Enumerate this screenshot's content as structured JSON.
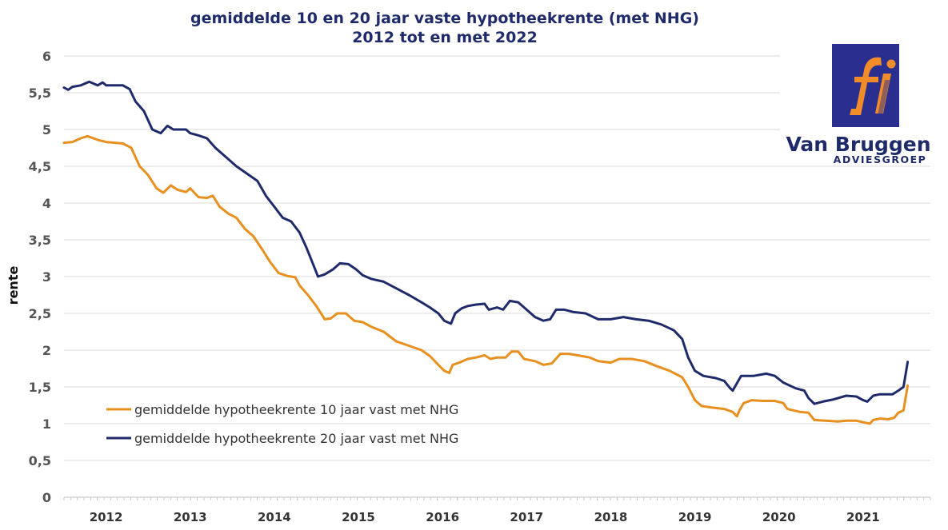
{
  "chart_data": {
    "type": "line",
    "title": "gemiddelde 10 en 20 jaar vaste hypotheekrente (met NHG)",
    "subtitle": "2012 tot en met 2022",
    "xlabel": "",
    "ylabel": "rente",
    "ylim": [
      0,
      6
    ],
    "xlim": [
      2011.5,
      2021.8
    ],
    "y_ticks": [
      "0",
      "0,5",
      "1",
      "1,5",
      "2",
      "2,5",
      "3",
      "3,5",
      "4",
      "4,5",
      "5",
      "5,5",
      "6"
    ],
    "x_ticks": [
      "2012",
      "2013",
      "2014",
      "2015",
      "2016",
      "2017",
      "2018",
      "2019",
      "2020",
      "2021"
    ],
    "grid": true,
    "legend_position": "bottom-left",
    "series": [
      {
        "name": "gemiddelde hypotheekrente 10 jaar vast met NHG",
        "color": "#e8901f",
        "points": [
          [
            2011.5,
            4.82
          ],
          [
            2011.6,
            4.83
          ],
          [
            2011.7,
            4.88
          ],
          [
            2011.78,
            4.91
          ],
          [
            2011.9,
            4.86
          ],
          [
            2012.0,
            4.83
          ],
          [
            2012.2,
            4.81
          ],
          [
            2012.3,
            4.75
          ],
          [
            2012.4,
            4.5
          ],
          [
            2012.5,
            4.38
          ],
          [
            2012.6,
            4.2
          ],
          [
            2012.68,
            4.14
          ],
          [
            2012.77,
            4.24
          ],
          [
            2012.85,
            4.18
          ],
          [
            2012.95,
            4.15
          ],
          [
            2013.0,
            4.2
          ],
          [
            2013.1,
            4.08
          ],
          [
            2013.2,
            4.07
          ],
          [
            2013.27,
            4.1
          ],
          [
            2013.35,
            3.95
          ],
          [
            2013.45,
            3.86
          ],
          [
            2013.55,
            3.8
          ],
          [
            2013.65,
            3.65
          ],
          [
            2013.75,
            3.55
          ],
          [
            2013.85,
            3.38
          ],
          [
            2013.95,
            3.2
          ],
          [
            2014.05,
            3.05
          ],
          [
            2014.15,
            3.01
          ],
          [
            2014.25,
            2.99
          ],
          [
            2014.3,
            2.88
          ],
          [
            2014.4,
            2.75
          ],
          [
            2014.5,
            2.6
          ],
          [
            2014.6,
            2.42
          ],
          [
            2014.67,
            2.43
          ],
          [
            2014.75,
            2.5
          ],
          [
            2014.85,
            2.5
          ],
          [
            2014.95,
            2.4
          ],
          [
            2015.05,
            2.38
          ],
          [
            2015.15,
            2.32
          ],
          [
            2015.3,
            2.25
          ],
          [
            2015.45,
            2.12
          ],
          [
            2015.6,
            2.06
          ],
          [
            2015.75,
            2.0
          ],
          [
            2015.85,
            1.92
          ],
          [
            2015.95,
            1.8
          ],
          [
            2016.02,
            1.72
          ],
          [
            2016.08,
            1.69
          ],
          [
            2016.12,
            1.8
          ],
          [
            2016.2,
            1.83
          ],
          [
            2016.3,
            1.88
          ],
          [
            2016.4,
            1.9
          ],
          [
            2016.5,
            1.93
          ],
          [
            2016.57,
            1.88
          ],
          [
            2016.65,
            1.9
          ],
          [
            2016.75,
            1.9
          ],
          [
            2016.82,
            1.98
          ],
          [
            2016.9,
            1.98
          ],
          [
            2016.97,
            1.88
          ],
          [
            2017.1,
            1.85
          ],
          [
            2017.2,
            1.8
          ],
          [
            2017.3,
            1.82
          ],
          [
            2017.4,
            1.95
          ],
          [
            2017.5,
            1.95
          ],
          [
            2017.6,
            1.93
          ],
          [
            2017.75,
            1.9
          ],
          [
            2017.85,
            1.85
          ],
          [
            2018.0,
            1.83
          ],
          [
            2018.1,
            1.88
          ],
          [
            2018.25,
            1.88
          ],
          [
            2018.4,
            1.85
          ],
          [
            2018.55,
            1.78
          ],
          [
            2018.7,
            1.72
          ],
          [
            2018.85,
            1.63
          ],
          [
            2018.92,
            1.5
          ],
          [
            2019.0,
            1.32
          ],
          [
            2019.08,
            1.24
          ],
          [
            2019.2,
            1.22
          ],
          [
            2019.35,
            1.2
          ],
          [
            2019.45,
            1.16
          ],
          [
            2019.5,
            1.1
          ],
          [
            2019.53,
            1.18
          ],
          [
            2019.58,
            1.28
          ],
          [
            2019.68,
            1.32
          ],
          [
            2019.8,
            1.31
          ],
          [
            2019.95,
            1.31
          ],
          [
            2020.05,
            1.28
          ],
          [
            2020.1,
            1.2
          ],
          [
            2020.25,
            1.16
          ],
          [
            2020.35,
            1.15
          ],
          [
            2020.42,
            1.05
          ],
          [
            2020.55,
            1.04
          ],
          [
            2020.7,
            1.03
          ],
          [
            2020.8,
            1.04
          ],
          [
            2020.92,
            1.04
          ],
          [
            2021.0,
            1.02
          ],
          [
            2021.08,
            1.0
          ],
          [
            2021.12,
            1.05
          ],
          [
            2021.2,
            1.07
          ],
          [
            2021.3,
            1.06
          ],
          [
            2021.37,
            1.08
          ],
          [
            2021.42,
            1.15
          ],
          [
            2021.48,
            1.18
          ],
          [
            2021.53,
            1.52
          ]
        ]
      },
      {
        "name": "gemiddelde hypotheekrente 20 jaar vast met NHG",
        "color": "#1f2a6b",
        "points": [
          [
            2011.5,
            5.57
          ],
          [
            2011.55,
            5.54
          ],
          [
            2011.6,
            5.58
          ],
          [
            2011.7,
            5.6
          ],
          [
            2011.8,
            5.65
          ],
          [
            2011.9,
            5.6
          ],
          [
            2011.96,
            5.64
          ],
          [
            2012.0,
            5.6
          ],
          [
            2012.2,
            5.6
          ],
          [
            2012.28,
            5.55
          ],
          [
            2012.35,
            5.38
          ],
          [
            2012.45,
            5.25
          ],
          [
            2012.55,
            5.0
          ],
          [
            2012.65,
            4.95
          ],
          [
            2012.73,
            5.05
          ],
          [
            2012.8,
            5.0
          ],
          [
            2012.95,
            5.0
          ],
          [
            2013.0,
            4.95
          ],
          [
            2013.1,
            4.92
          ],
          [
            2013.2,
            4.88
          ],
          [
            2013.3,
            4.75
          ],
          [
            2013.45,
            4.6
          ],
          [
            2013.55,
            4.5
          ],
          [
            2013.7,
            4.38
          ],
          [
            2013.8,
            4.3
          ],
          [
            2013.9,
            4.1
          ],
          [
            2014.0,
            3.95
          ],
          [
            2014.1,
            3.8
          ],
          [
            2014.2,
            3.75
          ],
          [
            2014.3,
            3.6
          ],
          [
            2014.38,
            3.4
          ],
          [
            2014.45,
            3.2
          ],
          [
            2014.52,
            3.0
          ],
          [
            2014.6,
            3.03
          ],
          [
            2014.7,
            3.1
          ],
          [
            2014.78,
            3.18
          ],
          [
            2014.88,
            3.17
          ],
          [
            2014.97,
            3.1
          ],
          [
            2015.05,
            3.02
          ],
          [
            2015.15,
            2.97
          ],
          [
            2015.3,
            2.93
          ],
          [
            2015.45,
            2.84
          ],
          [
            2015.6,
            2.75
          ],
          [
            2015.75,
            2.65
          ],
          [
            2015.85,
            2.58
          ],
          [
            2015.95,
            2.5
          ],
          [
            2016.02,
            2.4
          ],
          [
            2016.1,
            2.36
          ],
          [
            2016.15,
            2.5
          ],
          [
            2016.23,
            2.57
          ],
          [
            2016.3,
            2.6
          ],
          [
            2016.4,
            2.62
          ],
          [
            2016.5,
            2.63
          ],
          [
            2016.55,
            2.55
          ],
          [
            2016.65,
            2.58
          ],
          [
            2016.72,
            2.55
          ],
          [
            2016.8,
            2.67
          ],
          [
            2016.9,
            2.65
          ],
          [
            2017.0,
            2.55
          ],
          [
            2017.1,
            2.45
          ],
          [
            2017.2,
            2.4
          ],
          [
            2017.28,
            2.42
          ],
          [
            2017.35,
            2.55
          ],
          [
            2017.45,
            2.55
          ],
          [
            2017.55,
            2.52
          ],
          [
            2017.7,
            2.5
          ],
          [
            2017.85,
            2.42
          ],
          [
            2018.0,
            2.42
          ],
          [
            2018.15,
            2.45
          ],
          [
            2018.3,
            2.42
          ],
          [
            2018.45,
            2.4
          ],
          [
            2018.6,
            2.35
          ],
          [
            2018.75,
            2.27
          ],
          [
            2018.85,
            2.15
          ],
          [
            2018.92,
            1.9
          ],
          [
            2019.0,
            1.72
          ],
          [
            2019.1,
            1.65
          ],
          [
            2019.25,
            1.62
          ],
          [
            2019.35,
            1.58
          ],
          [
            2019.42,
            1.48
          ],
          [
            2019.45,
            1.45
          ],
          [
            2019.5,
            1.55
          ],
          [
            2019.55,
            1.65
          ],
          [
            2019.7,
            1.65
          ],
          [
            2019.85,
            1.68
          ],
          [
            2019.95,
            1.65
          ],
          [
            2020.05,
            1.56
          ],
          [
            2020.2,
            1.48
          ],
          [
            2020.3,
            1.45
          ],
          [
            2020.35,
            1.35
          ],
          [
            2020.42,
            1.27
          ],
          [
            2020.52,
            1.3
          ],
          [
            2020.65,
            1.33
          ],
          [
            2020.8,
            1.38
          ],
          [
            2020.92,
            1.37
          ],
          [
            2021.0,
            1.32
          ],
          [
            2021.05,
            1.3
          ],
          [
            2021.12,
            1.38
          ],
          [
            2021.2,
            1.4
          ],
          [
            2021.35,
            1.4
          ],
          [
            2021.42,
            1.45
          ],
          [
            2021.48,
            1.5
          ],
          [
            2021.53,
            1.84
          ]
        ]
      }
    ]
  },
  "logo": {
    "brand_line1": "Van Bruggen",
    "brand_line2": "ADVIESGROEP",
    "mark_text": "fi",
    "mark_color": "#2a2f8f",
    "accent_color": "#f28c28"
  },
  "colors": {
    "background": "#ffffff",
    "grid": "#d9d9d9",
    "title": "#1f2a6b"
  }
}
